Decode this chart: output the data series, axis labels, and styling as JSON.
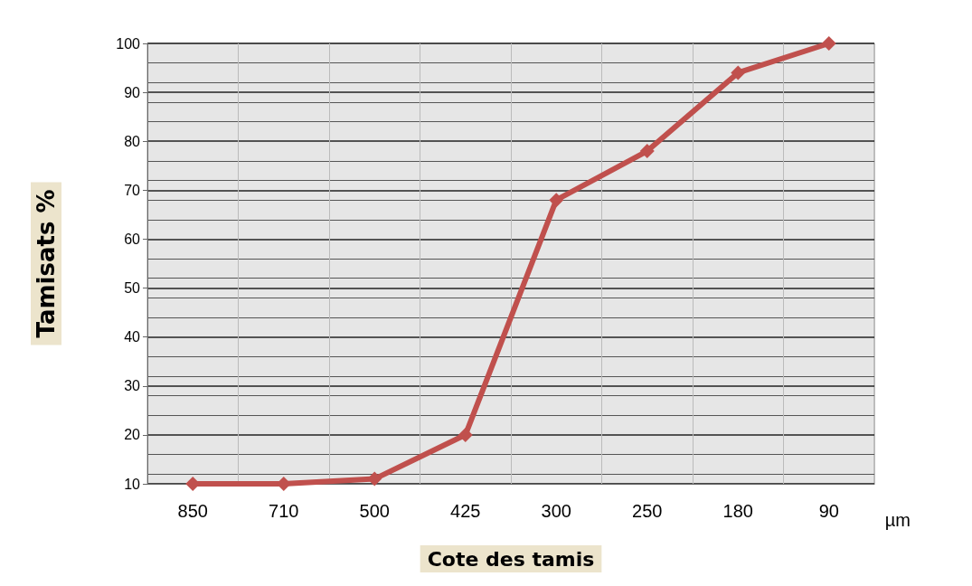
{
  "chart_data": {
    "type": "line",
    "xlabel": "Cote des tamis",
    "ylabel": "Tamisats %",
    "annotations": [
      "µm"
    ],
    "categories": [
      "850",
      "710",
      "500",
      "425",
      "300",
      "250",
      "180",
      "90"
    ],
    "series": [
      {
        "color": "#c0504d",
        "values": [
          10,
          10,
          11,
          20,
          68,
          78,
          94,
          100
        ]
      }
    ],
    "ylim": [
      10,
      100
    ],
    "yticks": [
      10,
      20,
      30,
      40,
      50,
      60,
      70,
      80,
      90,
      100
    ],
    "grid": true,
    "marker": "diamond",
    "line_style": "solid"
  }
}
